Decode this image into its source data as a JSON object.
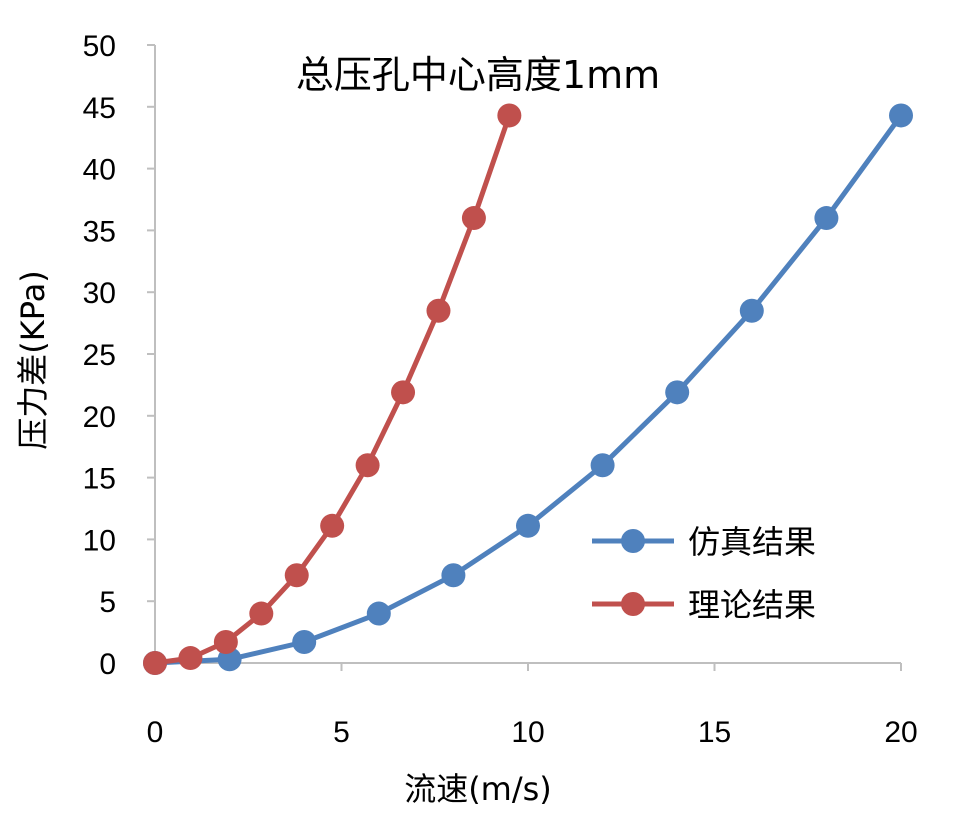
{
  "chart_data": {
    "type": "line",
    "title": "总压孔中心高度1mm",
    "xlabel": "流速(m/s)",
    "ylabel": "压力差(KPa)",
    "xlim": [
      0,
      20
    ],
    "ylim": [
      0,
      50
    ],
    "xticks": [
      0,
      5,
      10,
      15,
      20
    ],
    "yticks": [
      0,
      5,
      10,
      15,
      20,
      25,
      30,
      35,
      40,
      45,
      50
    ],
    "grid": false,
    "legend_position": "right",
    "series": [
      {
        "name": "仿真结果",
        "color": "#4F81BD",
        "marker": "circle",
        "x": [
          0,
          2,
          4,
          6,
          8,
          10,
          12,
          14,
          16,
          18,
          20
        ],
        "y": [
          0,
          0.3,
          1.7,
          4.0,
          7.1,
          11.1,
          16.0,
          21.9,
          28.5,
          36.0,
          44.3
        ]
      },
      {
        "name": "理论结果",
        "color": "#C0504D",
        "marker": "circle",
        "x": [
          0,
          0.95,
          1.9,
          2.85,
          3.8,
          4.75,
          5.7,
          6.65,
          7.6,
          8.55,
          9.5
        ],
        "y": [
          0,
          0.4,
          1.7,
          4.0,
          7.1,
          11.1,
          16.0,
          21.9,
          28.5,
          36.0,
          44.3
        ]
      }
    ]
  }
}
